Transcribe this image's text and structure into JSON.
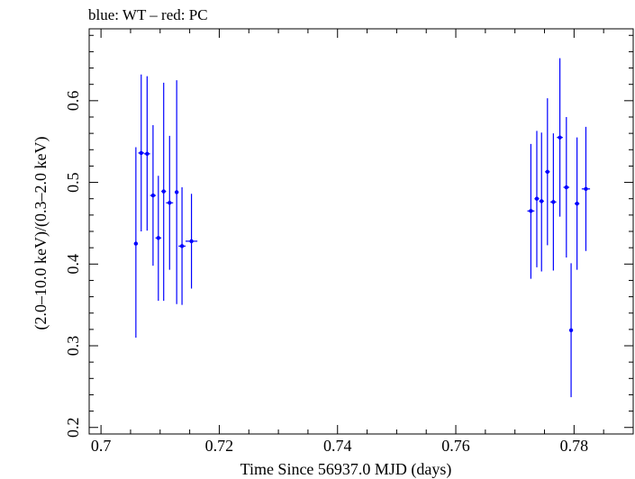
{
  "chart_data": {
    "type": "scatter",
    "title": "blue: WT – red: PC",
    "xlabel": "Time Since 56937.0 MJD (days)",
    "ylabel": "(2.0–10.0 keV)/(0.3–2.0 keV)",
    "xlim": [
      0.698,
      0.79
    ],
    "ylim": [
      0.192,
      0.688
    ],
    "xticks": [
      {
        "value": 0.7,
        "label": "0.7"
      },
      {
        "value": 0.72,
        "label": "0.72"
      },
      {
        "value": 0.74,
        "label": "0.74"
      },
      {
        "value": 0.76,
        "label": "0.76"
      },
      {
        "value": 0.78,
        "label": "0.78"
      }
    ],
    "yticks": [
      {
        "value": 0.2,
        "label": "0.2"
      },
      {
        "value": 0.3,
        "label": "0.3"
      },
      {
        "value": 0.4,
        "label": "0.4"
      },
      {
        "value": 0.5,
        "label": "0.5"
      },
      {
        "value": 0.6,
        "label": "0.6"
      }
    ],
    "grid": false,
    "series": [
      {
        "color": "#0000ff",
        "points": [
          {
            "x": 0.7059,
            "y": 0.425,
            "xerr": 0.0003,
            "ylo": 0.31,
            "yhi": 0.543
          },
          {
            "x": 0.7068,
            "y": 0.536,
            "xerr": 0.0005,
            "ylo": 0.44,
            "yhi": 0.632
          },
          {
            "x": 0.7078,
            "y": 0.535,
            "xerr": 0.0005,
            "ylo": 0.441,
            "yhi": 0.63
          },
          {
            "x": 0.7088,
            "y": 0.484,
            "xerr": 0.0005,
            "ylo": 0.398,
            "yhi": 0.57
          },
          {
            "x": 0.7097,
            "y": 0.432,
            "xerr": 0.0005,
            "ylo": 0.355,
            "yhi": 0.508
          },
          {
            "x": 0.7106,
            "y": 0.489,
            "xerr": 0.0004,
            "ylo": 0.355,
            "yhi": 0.622
          },
          {
            "x": 0.7116,
            "y": 0.475,
            "xerr": 0.0006,
            "ylo": 0.393,
            "yhi": 0.557
          },
          {
            "x": 0.7128,
            "y": 0.488,
            "xerr": 0.0003,
            "ylo": 0.351,
            "yhi": 0.625
          },
          {
            "x": 0.7137,
            "y": 0.422,
            "xerr": 0.0006,
            "ylo": 0.35,
            "yhi": 0.494
          },
          {
            "x": 0.7153,
            "y": 0.428,
            "xerr": 0.001,
            "ylo": 0.37,
            "yhi": 0.486
          },
          {
            "x": 0.7727,
            "y": 0.465,
            "xerr": 0.0006,
            "ylo": 0.382,
            "yhi": 0.547
          },
          {
            "x": 0.7737,
            "y": 0.48,
            "xerr": 0.0004,
            "ylo": 0.396,
            "yhi": 0.563
          },
          {
            "x": 0.7745,
            "y": 0.477,
            "xerr": 0.0004,
            "ylo": 0.391,
            "yhi": 0.561
          },
          {
            "x": 0.7755,
            "y": 0.513,
            "xerr": 0.0004,
            "ylo": 0.423,
            "yhi": 0.603
          },
          {
            "x": 0.7765,
            "y": 0.476,
            "xerr": 0.0005,
            "ylo": 0.392,
            "yhi": 0.56
          },
          {
            "x": 0.7776,
            "y": 0.555,
            "xerr": 0.0005,
            "ylo": 0.458,
            "yhi": 0.652
          },
          {
            "x": 0.7787,
            "y": 0.494,
            "xerr": 0.0005,
            "ylo": 0.408,
            "yhi": 0.58
          },
          {
            "x": 0.7795,
            "y": 0.319,
            "xerr": 0.0002,
            "ylo": 0.237,
            "yhi": 0.401
          },
          {
            "x": 0.7805,
            "y": 0.474,
            "xerr": 0.0004,
            "ylo": 0.393,
            "yhi": 0.555
          },
          {
            "x": 0.782,
            "y": 0.492,
            "xerr": 0.0007,
            "ylo": 0.416,
            "yhi": 0.568
          }
        ]
      }
    ]
  }
}
